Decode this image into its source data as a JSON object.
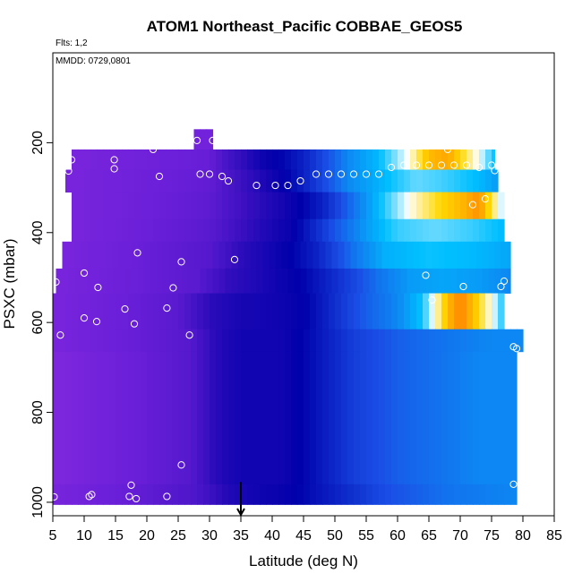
{
  "chart_data": {
    "type": "heatmap",
    "title": "ATOM1 Northeast_Pacific COBBAE_GEOS5",
    "annotations": {
      "flights": "Flts: 1,2",
      "dates": "MMDD: 0729,0801"
    },
    "xlabel": "Latitude (deg N)",
    "ylabel": "PSXC (mbar)",
    "xlim": [
      5,
      85
    ],
    "ylim": [
      1030,
      0
    ],
    "x_ticks": [
      5,
      10,
      15,
      20,
      25,
      30,
      35,
      40,
      45,
      50,
      55,
      60,
      65,
      70,
      75,
      80,
      85
    ],
    "x_tick_labels": [
      "5",
      "10",
      "15",
      "20",
      "25",
      "30",
      "35",
      "40",
      "45",
      "50",
      "55",
      "60",
      "65",
      "70",
      "75",
      "80",
      "85"
    ],
    "y_ticks": [
      200,
      400,
      600,
      800,
      1000
    ],
    "y_tick_labels": [
      "200",
      "400",
      "600",
      "800",
      "1000"
    ],
    "marker": {
      "type": "arrow-down",
      "x": 35
    },
    "colors": {
      "scale": [
        "#8a2be2",
        "#6a1fd8",
        "#3a10c0",
        "#0000aa",
        "#1a4fe6",
        "#00bfff",
        "#ffffff",
        "#ffd700",
        "#ff8c00",
        "#cc0000"
      ],
      "marker": "#000000",
      "point_stroke": "#ffffff"
    },
    "layers": [
      {
        "p_top": 170,
        "p_bot": 215,
        "x_start": 27.5,
        "x_end": 30.5,
        "fields": [
          [
            27.5,
            0.08
          ],
          [
            30.5,
            0.08
          ]
        ]
      },
      {
        "p_top": 215,
        "p_bot": 260,
        "x_start": 8,
        "x_end": 75.5,
        "fields": [
          [
            8,
            0.06
          ],
          [
            30,
            0.12
          ],
          [
            33,
            0.2
          ],
          [
            38,
            0.3
          ],
          [
            45,
            0.38
          ],
          [
            52,
            0.5
          ],
          [
            57,
            0.55
          ],
          [
            60,
            0.62
          ],
          [
            62,
            0.68
          ],
          [
            65,
            0.82
          ],
          [
            68,
            0.85
          ],
          [
            70,
            0.78
          ],
          [
            72,
            0.7
          ],
          [
            74,
            0.62
          ],
          [
            75.5,
            0.55
          ]
        ]
      },
      {
        "p_top": 260,
        "p_bot": 310,
        "x_start": 7,
        "x_end": 76,
        "fields": [
          [
            7,
            0.06
          ],
          [
            30,
            0.13
          ],
          [
            35,
            0.22
          ],
          [
            40,
            0.3
          ],
          [
            45,
            0.38
          ],
          [
            52,
            0.5
          ],
          [
            58,
            0.55
          ],
          [
            63,
            0.6
          ],
          [
            68,
            0.58
          ],
          [
            73,
            0.55
          ],
          [
            76,
            0.52
          ]
        ]
      },
      {
        "p_top": 310,
        "p_bot": 370,
        "x_start": 8,
        "x_end": 77,
        "fields": [
          [
            8,
            0.06
          ],
          [
            30,
            0.14
          ],
          [
            37,
            0.24
          ],
          [
            42,
            0.3
          ],
          [
            48,
            0.38
          ],
          [
            53,
            0.48
          ],
          [
            57,
            0.55
          ],
          [
            60,
            0.62
          ],
          [
            63,
            0.7
          ],
          [
            67,
            0.78
          ],
          [
            70,
            0.82
          ],
          [
            73,
            0.88
          ],
          [
            75,
            0.75
          ],
          [
            77,
            0.62
          ]
        ]
      },
      {
        "p_top": 370,
        "p_bot": 420,
        "x_start": 8,
        "x_end": 77,
        "fields": [
          [
            8,
            0.06
          ],
          [
            30,
            0.15
          ],
          [
            37,
            0.25
          ],
          [
            43,
            0.32
          ],
          [
            50,
            0.45
          ],
          [
            55,
            0.52
          ],
          [
            60,
            0.58
          ],
          [
            66,
            0.6
          ],
          [
            72,
            0.58
          ],
          [
            77,
            0.55
          ]
        ]
      },
      {
        "p_top": 420,
        "p_bot": 480,
        "x_start": 6.5,
        "x_end": 78,
        "fields": [
          [
            6.5,
            0.06
          ],
          [
            30,
            0.16
          ],
          [
            35,
            0.25
          ],
          [
            40,
            0.3
          ],
          [
            47,
            0.38
          ],
          [
            53,
            0.48
          ],
          [
            58,
            0.54
          ],
          [
            65,
            0.56
          ],
          [
            72,
            0.55
          ],
          [
            78,
            0.53
          ]
        ]
      },
      {
        "p_top": 480,
        "p_bot": 535,
        "x_start": 5.5,
        "x_end": 78,
        "fields": [
          [
            5.5,
            0.06
          ],
          [
            28,
            0.15
          ],
          [
            33,
            0.24
          ],
          [
            38,
            0.28
          ],
          [
            45,
            0.34
          ],
          [
            52,
            0.42
          ],
          [
            57,
            0.48
          ],
          [
            62,
            0.52
          ],
          [
            67,
            0.53
          ],
          [
            73,
            0.52
          ],
          [
            78,
            0.5
          ]
        ]
      },
      {
        "p_top": 535,
        "p_bot": 615,
        "x_start": 5,
        "x_end": 77,
        "fields": [
          [
            5,
            0.06
          ],
          [
            25,
            0.15
          ],
          [
            30,
            0.25
          ],
          [
            35,
            0.29
          ],
          [
            40,
            0.3
          ],
          [
            45,
            0.33
          ],
          [
            50,
            0.4
          ],
          [
            55,
            0.46
          ],
          [
            60,
            0.5
          ],
          [
            64,
            0.56
          ],
          [
            66,
            0.68
          ],
          [
            68,
            0.82
          ],
          [
            70,
            0.9
          ],
          [
            72,
            0.82
          ],
          [
            74,
            0.72
          ],
          [
            76,
            0.62
          ],
          [
            77,
            0.55
          ]
        ]
      },
      {
        "p_top": 615,
        "p_bot": 665,
        "x_start": 5,
        "x_end": 80,
        "fields": [
          [
            5,
            0.06
          ],
          [
            27,
            0.16
          ],
          [
            31,
            0.26
          ],
          [
            35,
            0.3
          ],
          [
            41,
            0.3
          ],
          [
            47,
            0.36
          ],
          [
            53,
            0.42
          ],
          [
            60,
            0.46
          ],
          [
            67,
            0.48
          ],
          [
            75,
            0.5
          ],
          [
            80,
            0.5
          ]
        ]
      },
      {
        "p_top": 665,
        "p_bot": 960,
        "x_start": 5,
        "x_end": 79,
        "fields": [
          [
            5,
            0.04
          ],
          [
            27,
            0.16
          ],
          [
            31,
            0.26
          ],
          [
            35,
            0.3
          ],
          [
            41,
            0.3
          ],
          [
            47,
            0.36
          ],
          [
            53,
            0.42
          ],
          [
            60,
            0.46
          ],
          [
            67,
            0.48
          ],
          [
            73,
            0.5
          ],
          [
            79,
            0.5
          ]
        ]
      },
      {
        "p_top": 960,
        "p_bot": 1005,
        "x_start": 5,
        "x_end": 79,
        "fields": [
          [
            5,
            0.06
          ],
          [
            28,
            0.18
          ],
          [
            33,
            0.27
          ],
          [
            37,
            0.3
          ],
          [
            42,
            0.32
          ],
          [
            50,
            0.38
          ],
          [
            58,
            0.44
          ],
          [
            68,
            0.48
          ],
          [
            79,
            0.5
          ]
        ]
      }
    ],
    "points": [
      [
        8,
        238
      ],
      [
        14.8,
        238
      ],
      [
        7.5,
        263
      ],
      [
        14.8,
        258
      ],
      [
        21,
        215
      ],
      [
        22,
        275
      ],
      [
        28,
        195
      ],
      [
        30.5,
        195
      ],
      [
        28.5,
        270
      ],
      [
        30,
        270
      ],
      [
        32,
        275
      ],
      [
        33,
        285
      ],
      [
        37.5,
        295
      ],
      [
        40.5,
        295
      ],
      [
        42.5,
        295
      ],
      [
        44.5,
        285
      ],
      [
        47,
        270
      ],
      [
        49,
        270
      ],
      [
        51,
        270
      ],
      [
        53,
        270
      ],
      [
        55,
        270
      ],
      [
        57,
        270
      ],
      [
        59,
        255
      ],
      [
        61,
        250
      ],
      [
        63,
        250
      ],
      [
        65,
        250
      ],
      [
        67,
        250
      ],
      [
        68,
        215
      ],
      [
        69,
        250
      ],
      [
        71,
        250
      ],
      [
        73,
        255
      ],
      [
        75,
        250
      ],
      [
        75.5,
        262
      ],
      [
        74,
        325
      ],
      [
        72,
        338
      ],
      [
        34,
        460
      ],
      [
        25.5,
        465
      ],
      [
        18.5,
        445
      ],
      [
        10,
        490
      ],
      [
        64.5,
        495
      ],
      [
        65.5,
        550
      ],
      [
        70.5,
        520
      ],
      [
        77,
        508
      ],
      [
        76.5,
        520
      ],
      [
        5.5,
        510
      ],
      [
        12.2,
        522
      ],
      [
        24.2,
        523
      ],
      [
        16.5,
        570
      ],
      [
        23.2,
        568
      ],
      [
        10,
        590
      ],
      [
        12,
        598
      ],
      [
        18,
        603
      ],
      [
        6.2,
        628
      ],
      [
        26.8,
        628
      ],
      [
        78.5,
        654
      ],
      [
        79,
        658
      ],
      [
        25.5,
        917
      ],
      [
        78.5,
        960
      ],
      [
        17.5,
        962
      ],
      [
        5.2,
        988
      ],
      [
        10.8,
        987
      ],
      [
        11.2,
        983
      ],
      [
        17.2,
        987
      ],
      [
        18.3,
        992
      ],
      [
        23.2,
        987
      ]
    ]
  }
}
